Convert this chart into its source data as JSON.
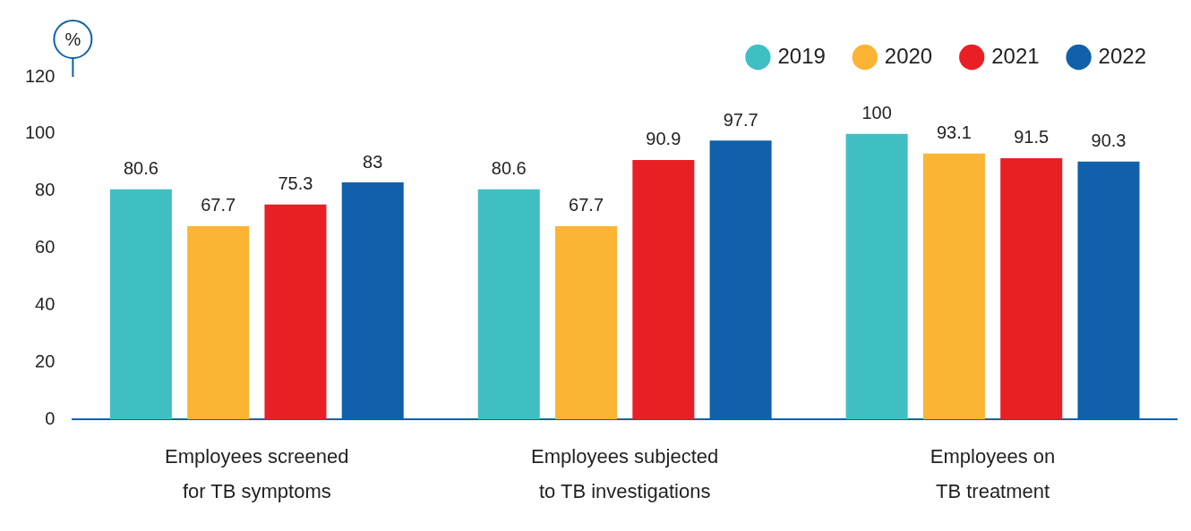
{
  "chart_data": {
    "type": "bar",
    "categories": [
      "Employees screened for TB symptoms",
      "Employees subjected to TB investigations",
      "Employees on TB treatment"
    ],
    "series": [
      {
        "name": "2019",
        "color": "#3fbfc4",
        "values": [
          80.6,
          80.6,
          100
        ]
      },
      {
        "name": "2020",
        "color": "#fbb433",
        "values": [
          67.7,
          67.7,
          93.1
        ]
      },
      {
        "name": "2021",
        "color": "#e91f26",
        "values": [
          75.3,
          90.9,
          91.5
        ]
      },
      {
        "name": "2022",
        "color": "#1060ab",
        "values": [
          83,
          97.7,
          90.3
        ]
      }
    ],
    "ylabel": "%",
    "ylim": [
      0,
      120
    ],
    "yticks": [
      0,
      20,
      40,
      60,
      80,
      100,
      120
    ],
    "data_labels": true,
    "legend": "top right",
    "marker": "circle",
    "grid": false
  }
}
